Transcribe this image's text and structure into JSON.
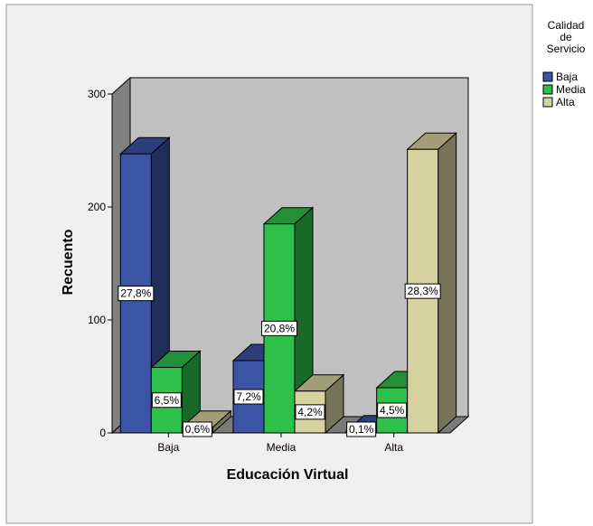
{
  "chart_data": {
    "type": "bar",
    "style": "3d-clustered",
    "xlabel": "Educación Virtual",
    "ylabel": "Recuento",
    "categories": [
      "Baja",
      "Media",
      "Alta"
    ],
    "ylim": [
      0,
      300
    ],
    "yticks": [
      "0",
      "100",
      "200",
      "300"
    ],
    "legend": {
      "title_lines": [
        "Calidad",
        "de",
        "Servicio"
      ],
      "placement": "top-right, outside plot"
    },
    "series": [
      {
        "name": "Baja",
        "color": "#3b54a5",
        "values": [
          247,
          64,
          1
        ],
        "labels": [
          "27,8%",
          "7,2%",
          "0,1%"
        ]
      },
      {
        "name": "Media",
        "color": "#2ec04a",
        "values": [
          58,
          185,
          40
        ],
        "labels": [
          "6,5%",
          "20,8%",
          "4,5%"
        ]
      },
      {
        "name": "Alta",
        "color": "#d6d2a0",
        "values": [
          5,
          37,
          251
        ],
        "labels": [
          "0,6%",
          "4,2%",
          "28,3%"
        ]
      }
    ],
    "wall_color": "#c0c0c0",
    "grid": false
  }
}
